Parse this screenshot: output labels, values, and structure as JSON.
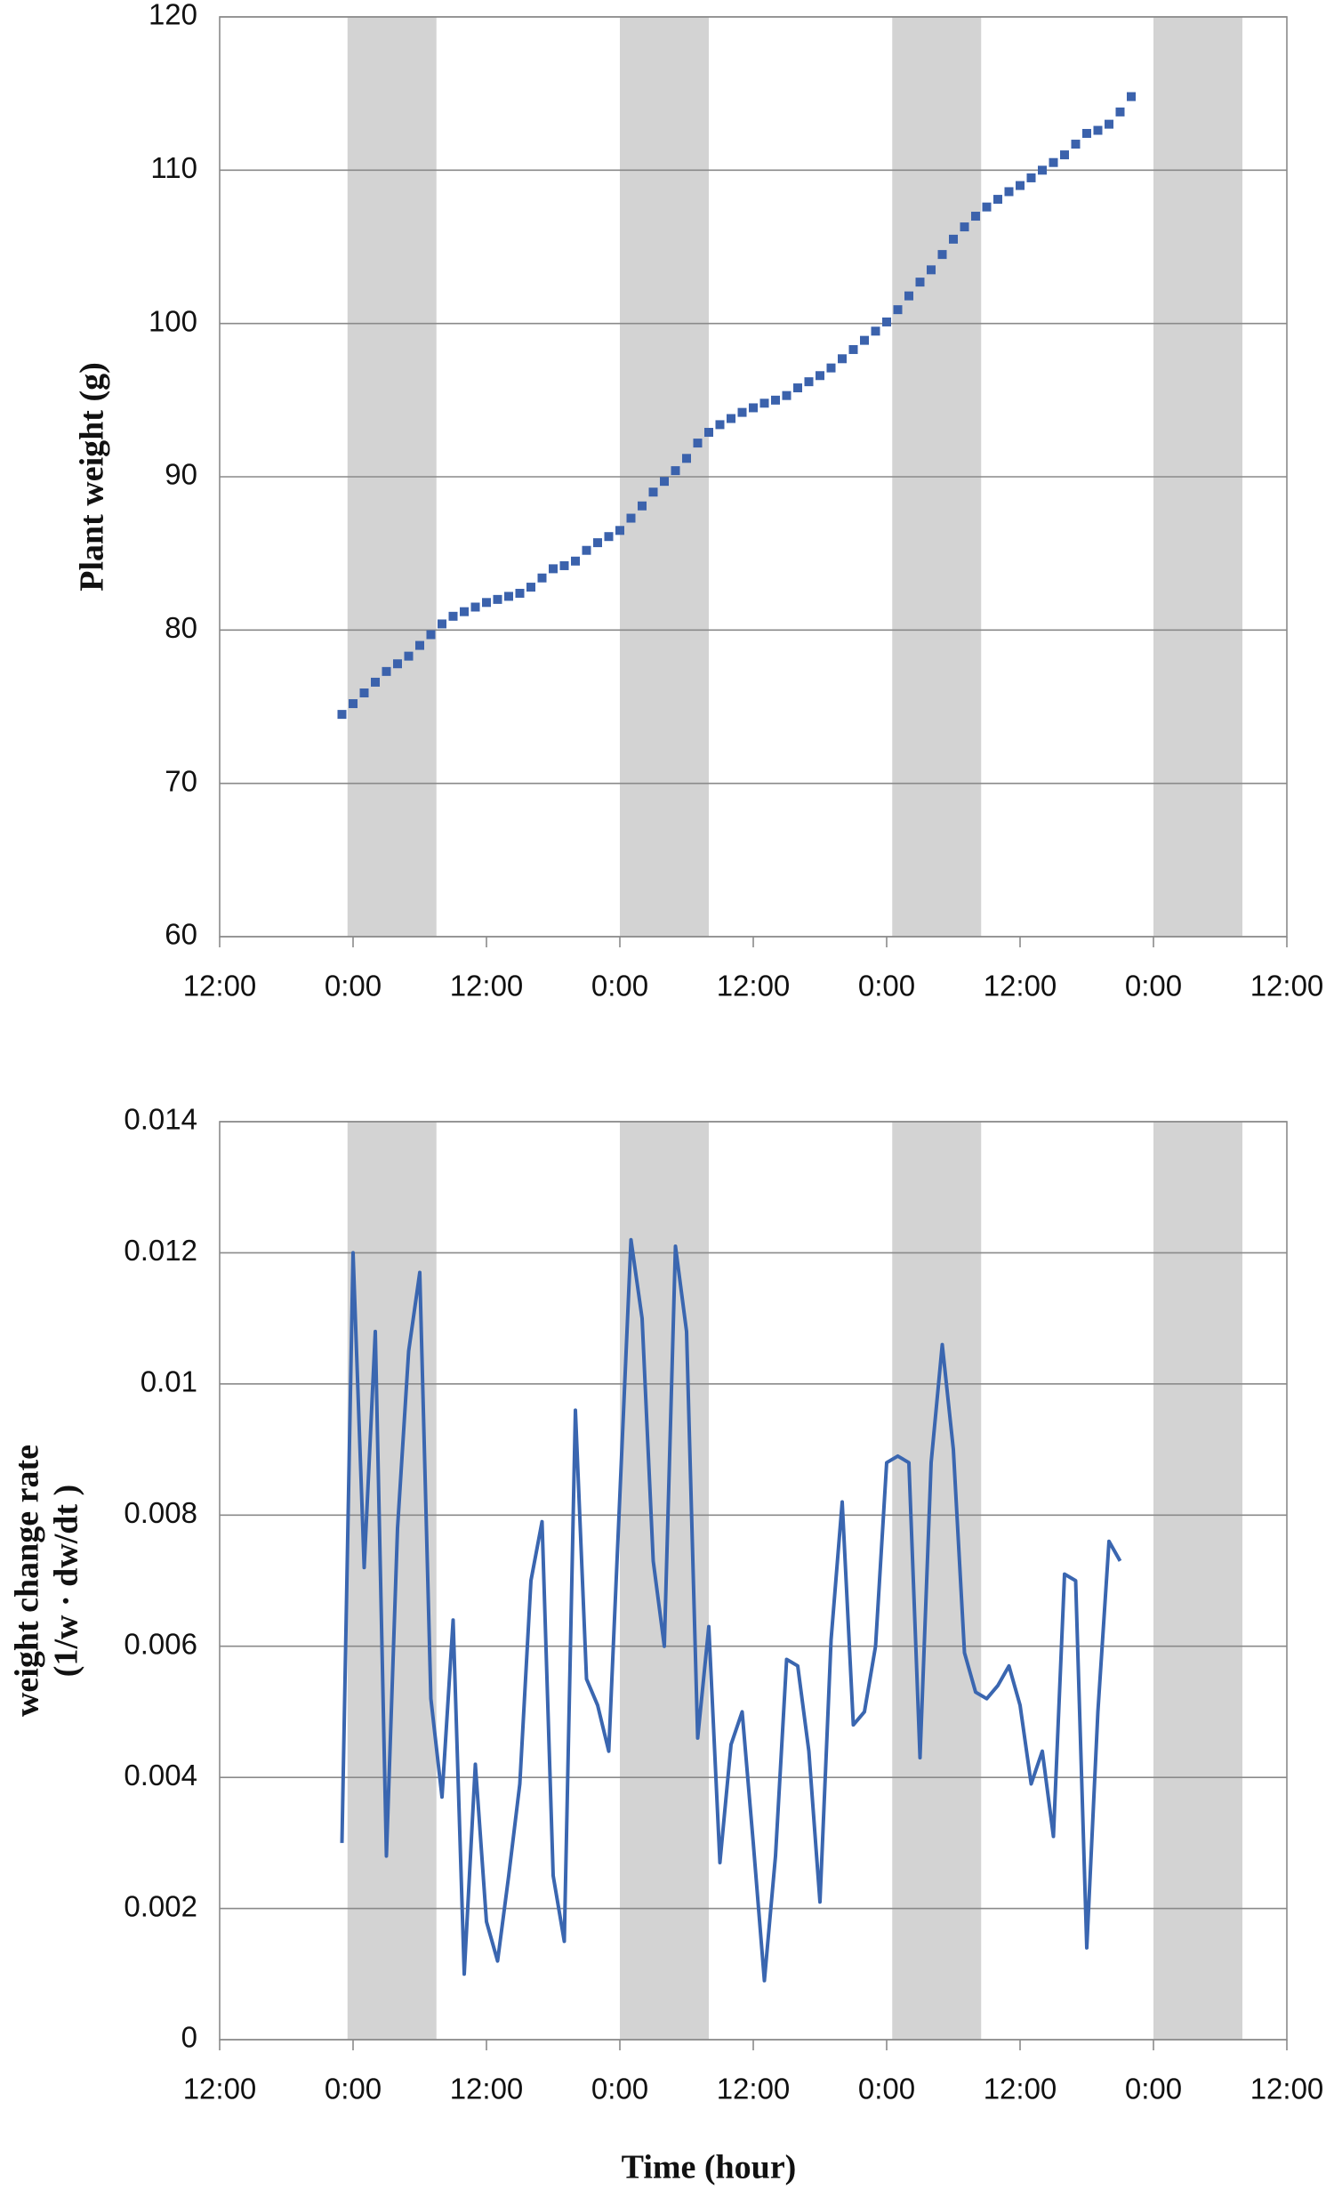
{
  "chart_data": [
    {
      "type": "scatter",
      "y_label": "Plant weight (g)",
      "color": "#3b62ac",
      "grid": true,
      "shade_color": "#d3d3d3",
      "shaded_x_ranges": [
        [
          -0.5,
          7.5
        ],
        [
          24,
          32
        ],
        [
          48.5,
          56.5
        ],
        [
          72,
          80
        ]
      ],
      "xlim": [
        -12,
        84
      ],
      "xticks": [
        {
          "value": -12,
          "label": "12:00"
        },
        {
          "value": 0,
          "label": "0:00"
        },
        {
          "value": 12,
          "label": "12:00"
        },
        {
          "value": 24,
          "label": "0:00"
        },
        {
          "value": 36,
          "label": "12:00"
        },
        {
          "value": 48,
          "label": "0:00"
        },
        {
          "value": 60,
          "label": "12:00"
        },
        {
          "value": 72,
          "label": "0:00"
        },
        {
          "value": 84,
          "label": "12:00"
        }
      ],
      "ylim": [
        60,
        120
      ],
      "yticks": [
        60,
        70,
        80,
        90,
        100,
        110,
        120
      ],
      "series": [
        {
          "x": [
            -1,
            0,
            1,
            2,
            3,
            4,
            5,
            6,
            7,
            8,
            9,
            10,
            11,
            12,
            13,
            14,
            15,
            16,
            17,
            18,
            19,
            20,
            21,
            22,
            23,
            24,
            25,
            26,
            27,
            28,
            29,
            30,
            31,
            32,
            33,
            34,
            35,
            36,
            37,
            38,
            39,
            40,
            41,
            42,
            43,
            44,
            45,
            46,
            47,
            48,
            49,
            50,
            51,
            52,
            53,
            54,
            55,
            56,
            57,
            58,
            59,
            60,
            61,
            62,
            63,
            64,
            65,
            66,
            67,
            68,
            69,
            70
          ],
          "values": [
            74.5,
            75.2,
            75.9,
            76.6,
            77.3,
            77.8,
            78.3,
            79.0,
            79.7,
            80.4,
            80.9,
            81.2,
            81.5,
            81.8,
            82.0,
            82.2,
            82.4,
            82.8,
            83.4,
            84.0,
            84.2,
            84.5,
            85.2,
            85.7,
            86.1,
            86.5,
            87.3,
            88.1,
            89.0,
            89.7,
            90.4,
            91.2,
            92.2,
            92.9,
            93.4,
            93.8,
            94.2,
            94.5,
            94.8,
            95.0,
            95.3,
            95.8,
            96.2,
            96.6,
            97.1,
            97.7,
            98.3,
            98.9,
            99.5,
            100.1,
            100.9,
            101.8,
            102.7,
            103.5,
            104.5,
            105.5,
            106.3,
            107.0,
            107.6,
            108.1,
            108.6,
            109.0,
            109.5,
            110.0,
            110.5,
            111.0,
            111.7,
            112.4,
            112.6,
            113.0,
            113.8,
            114.8
          ]
        }
      ]
    },
    {
      "type": "line",
      "x_label": "Time (hour)",
      "y_label": [
        "weight change rate",
        "(1/w · dw/dt )"
      ],
      "color": "#3a66b0",
      "grid": true,
      "shade_color": "#d3d3d3",
      "shaded_x_ranges": [
        [
          -0.5,
          7.5
        ],
        [
          24,
          32
        ],
        [
          48.5,
          56.5
        ],
        [
          72,
          80
        ]
      ],
      "xlim": [
        -12,
        84
      ],
      "xticks": [
        {
          "value": -12,
          "label": "12:00"
        },
        {
          "value": 0,
          "label": "0:00"
        },
        {
          "value": 12,
          "label": "12:00"
        },
        {
          "value": 24,
          "label": "0:00"
        },
        {
          "value": 36,
          "label": "12:00"
        },
        {
          "value": 48,
          "label": "0:00"
        },
        {
          "value": 60,
          "label": "12:00"
        },
        {
          "value": 72,
          "label": "0:00"
        },
        {
          "value": 84,
          "label": "12:00"
        }
      ],
      "ylim": [
        0,
        0.014
      ],
      "yticks": [
        0,
        0.002,
        0.004,
        0.006,
        0.008,
        0.01,
        0.012,
        0.014
      ],
      "series": [
        {
          "x": [
            -1,
            0,
            1,
            2,
            3,
            4,
            5,
            6,
            7,
            8,
            9,
            10,
            11,
            12,
            13,
            14,
            15,
            16,
            17,
            18,
            19,
            20,
            21,
            22,
            23,
            24,
            25,
            26,
            27,
            28,
            29,
            30,
            31,
            32,
            33,
            34,
            35,
            36,
            37,
            38,
            39,
            40,
            41,
            42,
            43,
            44,
            45,
            46,
            47,
            48,
            49,
            50,
            51,
            52,
            53,
            54,
            55,
            56,
            57,
            58,
            59,
            60,
            61,
            62,
            63,
            64,
            65,
            66,
            67,
            68,
            69
          ],
          "values": [
            0.003,
            0.012,
            0.0072,
            0.0108,
            0.0028,
            0.0078,
            0.0105,
            0.0117,
            0.0052,
            0.0037,
            0.0064,
            0.001,
            0.0042,
            0.0018,
            0.0012,
            0.0025,
            0.0039,
            0.007,
            0.0079,
            0.0025,
            0.0015,
            0.0096,
            0.0055,
            0.0051,
            0.0044,
            0.0083,
            0.0122,
            0.011,
            0.0073,
            0.006,
            0.0121,
            0.0108,
            0.0046,
            0.0063,
            0.0027,
            0.0045,
            0.005,
            0.003,
            0.0009,
            0.0028,
            0.0058,
            0.0057,
            0.0044,
            0.0021,
            0.0061,
            0.0082,
            0.0048,
            0.005,
            0.006,
            0.0088,
            0.0089,
            0.0088,
            0.0043,
            0.0088,
            0.0106,
            0.009,
            0.0059,
            0.0053,
            0.0052,
            0.0054,
            0.0057,
            0.0051,
            0.0039,
            0.0044,
            0.0031,
            0.0071,
            0.007,
            0.0014,
            0.005,
            0.0076,
            0.0073
          ]
        }
      ]
    }
  ]
}
